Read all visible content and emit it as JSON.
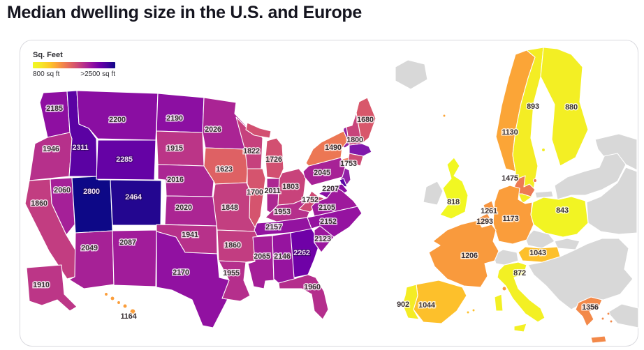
{
  "chart_data": {
    "type": "choropleth",
    "title": "Median dwelling size in the U.S. and Europe",
    "unit": "sq ft",
    "legend": {
      "label": "Sq. Feet",
      "min": "800 sq ft",
      "max": ">2500 sq ft"
    },
    "palette_yellow_to_dark": [
      "#f0f921",
      "#f6e726",
      "#fdca26",
      "#fb9f3a",
      "#ed7953",
      "#d8576b",
      "#bd3786",
      "#9c179e",
      "#7201a8",
      "#46039f",
      "#0d0887"
    ],
    "colors": {
      "no_data": "#d8d8d8",
      "border": "#ffffff",
      "label_dark": "#3a3134",
      "label_light": "#eedcf2"
    },
    "us_states": [
      {
        "name": "Washington",
        "value": 2185
      },
      {
        "name": "Oregon",
        "value": 1946
      },
      {
        "name": "California",
        "value": 1860
      },
      {
        "name": "Idaho",
        "value": 2311
      },
      {
        "name": "Nevada",
        "value": 2060
      },
      {
        "name": "Utah",
        "value": 2800
      },
      {
        "name": "Arizona",
        "value": 2049
      },
      {
        "name": "Montana",
        "value": 2200
      },
      {
        "name": "Wyoming",
        "value": 2285
      },
      {
        "name": "Colorado",
        "value": 2464
      },
      {
        "name": "New Mexico",
        "value": 2087
      },
      {
        "name": "North Dakota",
        "value": 2190
      },
      {
        "name": "South Dakota",
        "value": 1915
      },
      {
        "name": "Nebraska",
        "value": 2016
      },
      {
        "name": "Kansas",
        "value": 2020
      },
      {
        "name": "Oklahoma",
        "value": 1941
      },
      {
        "name": "Texas",
        "value": 2170
      },
      {
        "name": "Minnesota",
        "value": 2026
      },
      {
        "name": "Iowa",
        "value": 1623
      },
      {
        "name": "Missouri",
        "value": 1848
      },
      {
        "name": "Arkansas",
        "value": 1860
      },
      {
        "name": "Louisiana",
        "value": 1955
      },
      {
        "name": "Wisconsin",
        "value": 1822
      },
      {
        "name": "Illinois",
        "value": 1700
      },
      {
        "name": "Mississippi",
        "value": 2065
      },
      {
        "name": "Michigan",
        "value": 1726
      },
      {
        "name": "Indiana",
        "value": 2011
      },
      {
        "name": "Kentucky",
        "value": 1953
      },
      {
        "name": "Tennessee",
        "value": 2157
      },
      {
        "name": "Alabama",
        "value": 2146
      },
      {
        "name": "Ohio",
        "value": 1803
      },
      {
        "name": "West Virginia",
        "value": 1752
      },
      {
        "name": "Georgia",
        "value": 2262
      },
      {
        "name": "Pennsylvania",
        "value": 2045
      },
      {
        "name": "New York",
        "value": 1490
      },
      {
        "name": "Maryland",
        "value": 2207
      },
      {
        "name": "Virginia",
        "value": 2105
      },
      {
        "name": "North Carolina",
        "value": 2152
      },
      {
        "name": "South Carolina",
        "value": 2123
      },
      {
        "name": "Florida",
        "value": 1960
      },
      {
        "name": "Maine",
        "value": 1680
      },
      {
        "name": "New Hampshire",
        "value": 1800
      },
      {
        "name": "Connecticut",
        "value": 1753
      },
      {
        "name": "Alaska",
        "value": 1910
      },
      {
        "name": "Hawaii",
        "value": 1164
      }
    ],
    "europe": [
      {
        "name": "Norway",
        "value": 1130
      },
      {
        "name": "Sweden",
        "value": 893
      },
      {
        "name": "Finland",
        "value": 880
      },
      {
        "name": "Denmark",
        "value": 1475
      },
      {
        "name": "United Kingdom",
        "value": 818
      },
      {
        "name": "Netherlands",
        "value": 1261
      },
      {
        "name": "Belgium",
        "value": 1293
      },
      {
        "name": "Germany",
        "value": 1173
      },
      {
        "name": "Poland",
        "value": 843
      },
      {
        "name": "France",
        "value": 1206
      },
      {
        "name": "Austria",
        "value": 1043
      },
      {
        "name": "Italy",
        "value": 872
      },
      {
        "name": "Spain",
        "value": 1044
      },
      {
        "name": "Portugal",
        "value": 902
      },
      {
        "name": "Greece",
        "value": 1356
      }
    ],
    "unlabeled_regions": [
      {
        "name": "Vermont",
        "color": "#93239f"
      },
      {
        "name": "Massachusetts",
        "color": "#8018ab"
      },
      {
        "name": "New Jersey",
        "color": "#9122a8"
      },
      {
        "name": "Delaware",
        "color": "#5a07a6"
      }
    ],
    "no_data_regions": [
      "Iceland",
      "Ireland",
      "Switzerland",
      "Czechia",
      "Slovakia",
      "Baltic states",
      "Russia north",
      "Eastern Europe",
      "Kaliningrad",
      "Balkans",
      "Turkey"
    ]
  }
}
